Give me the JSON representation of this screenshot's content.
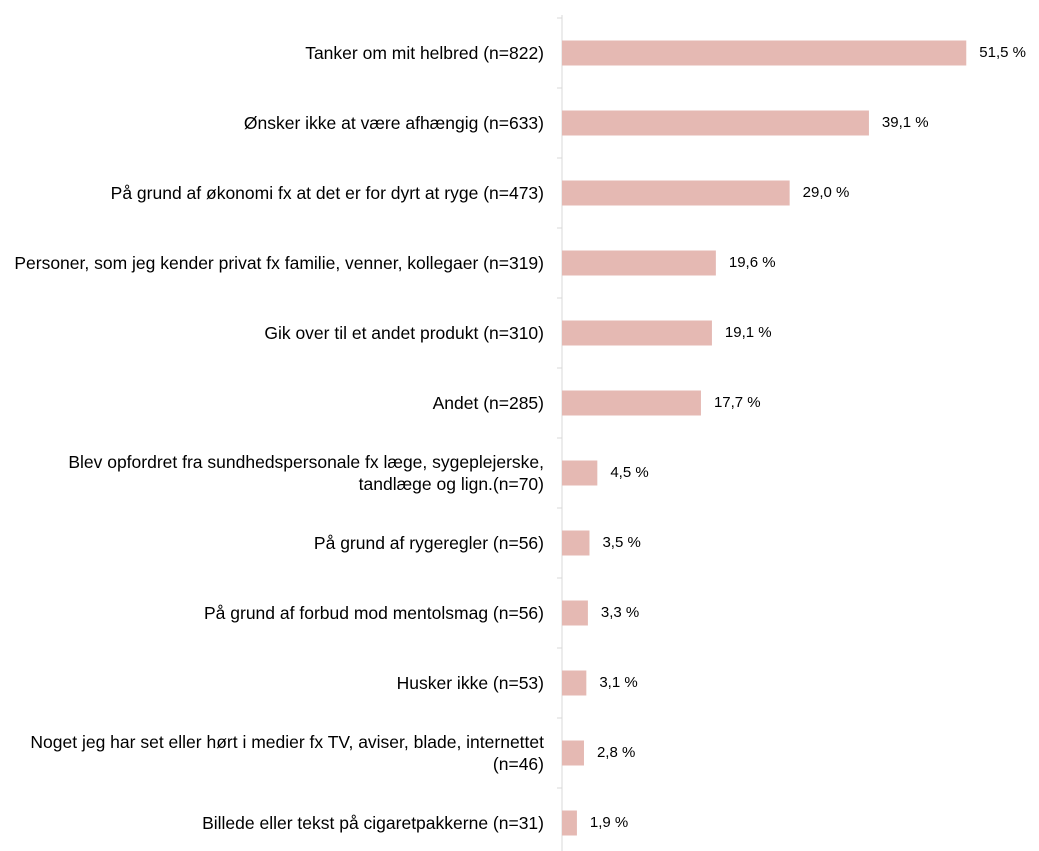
{
  "chart_data": {
    "type": "bar",
    "orientation": "horizontal",
    "categories": [
      "Tanker om mit helbred (n=822)",
      "Ønsker ikke at være afhængig (n=633)",
      "På grund af økonomi fx at det er for dyrt at ryge (n=473)",
      "Personer, som jeg kender privat fx familie, venner, kollegaer (n=319)",
      "Gik over til et andet produkt (n=310)",
      "Andet (n=285)",
      "Blev opfordret fra sundhedspersonale fx læge, sygeplejerske, tandlæge og lign.(n=70)",
      "På grund af rygeregler (n=56)",
      "På grund af forbud mod mentolsmag (n=56)",
      "Husker ikke (n=53)",
      "Noget jeg har set eller hørt i medier fx TV, aviser, blade, internettet (n=46)",
      "Billede eller tekst på cigaretpakkerne (n=31)"
    ],
    "values": [
      51.5,
      39.1,
      29.0,
      19.6,
      19.1,
      17.7,
      4.5,
      3.5,
      3.3,
      3.1,
      2.8,
      1.9
    ],
    "value_labels": [
      "51,5 %",
      "39,1 %",
      "29,0 %",
      "19,6 %",
      "19,1 %",
      "17,7 %",
      "4,5 %",
      "3,5 %",
      "3,3 %",
      "3,1 %",
      "2,8 %",
      "1,9 %"
    ],
    "color": "#e5b9b3",
    "xlim": [
      0,
      60
    ]
  }
}
